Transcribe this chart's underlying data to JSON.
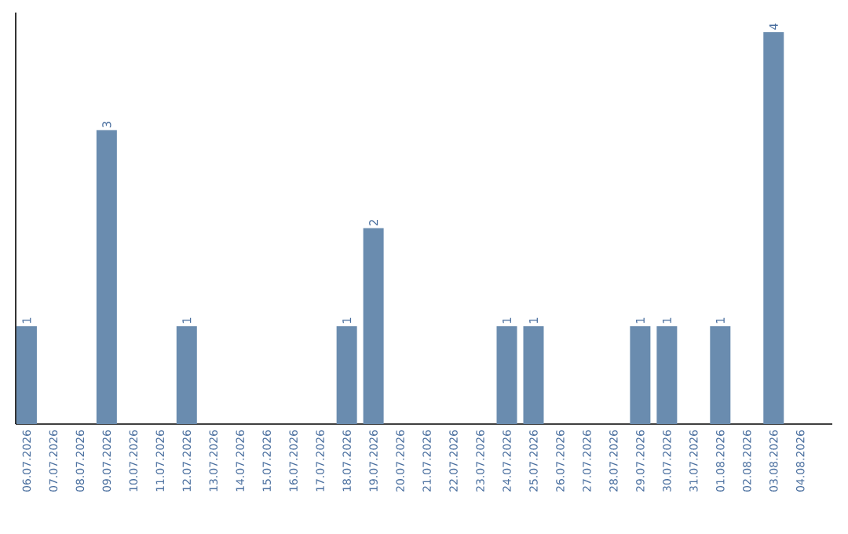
{
  "chart_data": {
    "type": "bar",
    "categories": [
      "06.07.2026",
      "07.07.2026",
      "08.07.2026",
      "09.07.2026",
      "10.07.2026",
      "11.07.2026",
      "12.07.2026",
      "13.07.2026",
      "14.07.2026",
      "15.07.2026",
      "16.07.2026",
      "17.07.2026",
      "18.07.2026",
      "19.07.2026",
      "20.07.2026",
      "21.07.2026",
      "22.07.2026",
      "23.07.2026",
      "24.07.2026",
      "25.07.2026",
      "26.07.2026",
      "27.07.2026",
      "28.07.2026",
      "29.07.2026",
      "30.07.2026",
      "31.07.2026",
      "01.08.2026",
      "02.08.2026",
      "03.08.2026",
      "04.08.2026"
    ],
    "values": [
      1,
      0,
      0,
      3,
      0,
      0,
      1,
      0,
      0,
      0,
      0,
      0,
      1,
      2,
      0,
      0,
      0,
      0,
      1,
      1,
      0,
      0,
      0,
      1,
      1,
      0,
      1,
      0,
      4,
      0
    ],
    "value_labels": [
      "1",
      null,
      null,
      "3",
      null,
      null,
      "1",
      null,
      null,
      null,
      null,
      null,
      "1",
      "2",
      null,
      null,
      null,
      null,
      "1",
      "1",
      null,
      null,
      null,
      "1",
      "1",
      null,
      "1",
      null,
      "4",
      null
    ],
    "color": "#6a8caf",
    "ylim": [
      0,
      4.2
    ],
    "tick_labels": "x",
    "grid": false
  }
}
